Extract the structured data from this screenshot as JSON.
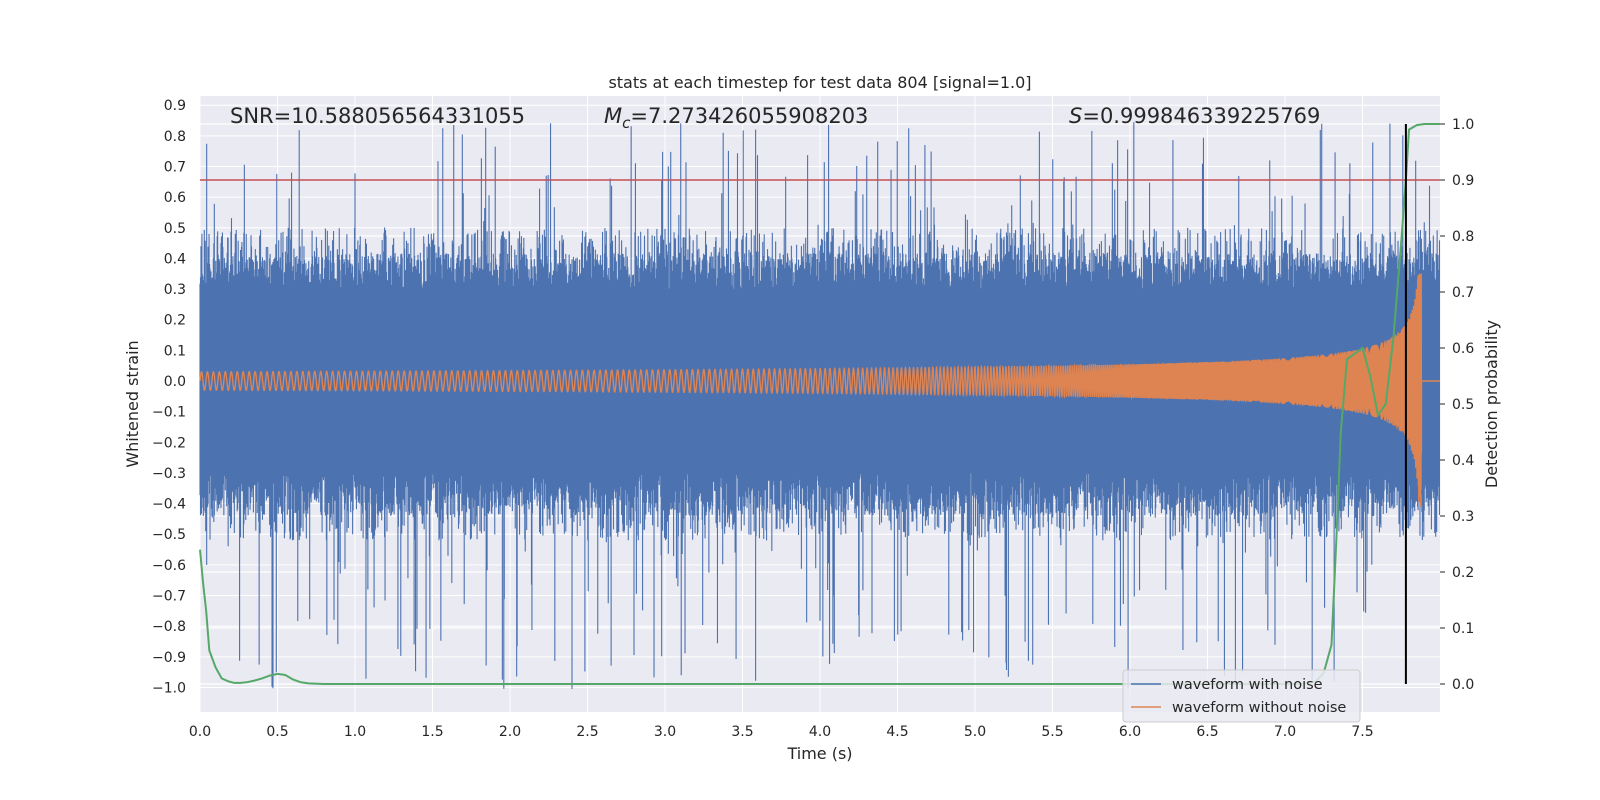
{
  "chart_data": {
    "type": "line",
    "title": "stats at each timestep for test data 804 [signal=1.0]",
    "xlabel": "Time (s)",
    "ylabel": "Whitened strain",
    "ylabel_right": "Detection probability",
    "xlim": [
      0.0,
      8.0
    ],
    "ylim": [
      -1.08,
      0.93
    ],
    "ylim_right": [
      -0.05,
      1.05
    ],
    "x_ticks": [
      "0.0",
      "0.5",
      "1.0",
      "1.5",
      "2.0",
      "2.5",
      "3.0",
      "3.5",
      "4.0",
      "4.5",
      "5.0",
      "5.5",
      "6.0",
      "6.5",
      "7.0",
      "7.5"
    ],
    "y_ticks": [
      "0.9",
      "0.8",
      "0.7",
      "0.6",
      "0.5",
      "0.4",
      "0.3",
      "0.2",
      "0.1",
      "0.0",
      "−0.1",
      "−0.2",
      "−0.3",
      "−0.4",
      "−0.5",
      "−0.6",
      "−0.7",
      "−0.8",
      "−0.9",
      "−1.0"
    ],
    "y_ticks_right": [
      "1.0",
      "0.9",
      "0.8",
      "0.7",
      "0.6",
      "0.5",
      "0.4",
      "0.3",
      "0.2",
      "0.1",
      "0.0"
    ],
    "grid": true,
    "legend_position": "lower-right",
    "annotations": {
      "snr": "SNR=10.588056564331055",
      "mc_symbol": "M",
      "mc_sub": "c",
      "mc_value": "=7.273426055908203",
      "s_symbol": "S",
      "s_value": "=0.999846339225769"
    },
    "threshold_y_right": 0.9,
    "marker_time": 7.78,
    "series": [
      {
        "name": "waveform with noise",
        "axis": "left",
        "color": "#4c72b0",
        "envelope": {
          "t_end": 8.0,
          "band": 0.3,
          "typical_peak": 0.5,
          "max": 0.85,
          "min": -1.02
        }
      },
      {
        "name": "waveform without noise",
        "axis": "left",
        "color": "#dd8452",
        "chirp": {
          "t_end": 7.9,
          "merger_time": 7.88,
          "amp_start": 0.03,
          "amp_max": 0.35,
          "amp_min": -0.41,
          "f_start": 26
        }
      },
      {
        "axis": "right",
        "color": "#55a868",
        "x": [
          0.0,
          0.02,
          0.04,
          0.06,
          0.1,
          0.14,
          0.18,
          0.22,
          0.26,
          0.3,
          0.35,
          0.4,
          0.45,
          0.5,
          0.55,
          0.6,
          0.65,
          0.7,
          0.8,
          1.0,
          2.0,
          3.0,
          4.0,
          5.0,
          6.0,
          7.0,
          7.1,
          7.2,
          7.25,
          7.3,
          7.33,
          7.36,
          7.4,
          7.45,
          7.5,
          7.55,
          7.6,
          7.65,
          7.7,
          7.75,
          7.78,
          7.8,
          7.85,
          7.9,
          7.95,
          8.0
        ],
        "y": [
          0.24,
          0.18,
          0.13,
          0.06,
          0.03,
          0.01,
          0.005,
          0.002,
          0.002,
          0.003,
          0.006,
          0.01,
          0.015,
          0.018,
          0.016,
          0.008,
          0.003,
          0.001,
          0.0,
          0.0,
          0.0,
          0.0,
          0.0,
          0.0,
          0.0,
          0.0,
          0.0,
          0.005,
          0.02,
          0.07,
          0.25,
          0.45,
          0.58,
          0.59,
          0.6,
          0.55,
          0.48,
          0.5,
          0.62,
          0.79,
          0.9,
          0.99,
          0.998,
          1.0,
          1.0,
          1.0
        ]
      }
    ]
  }
}
